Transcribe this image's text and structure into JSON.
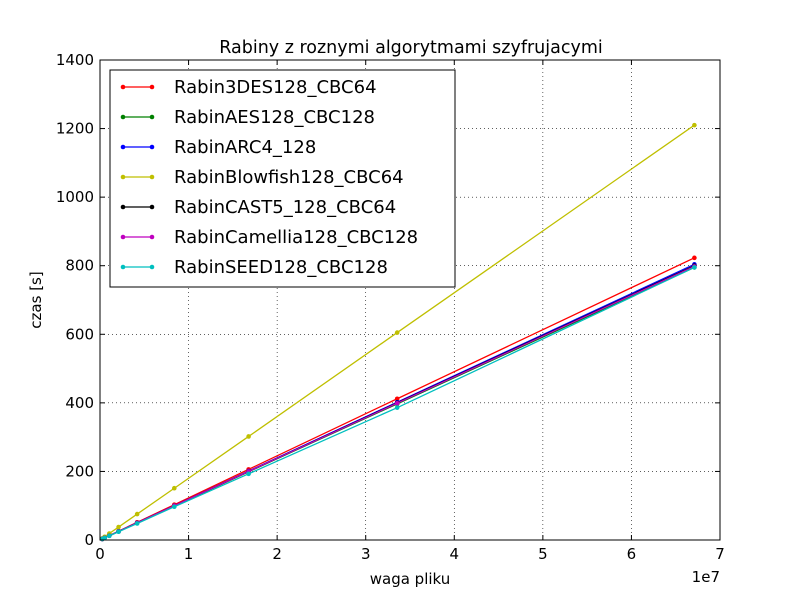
{
  "chart_data": {
    "type": "line",
    "title": "Rabiny z roznymi algorytmami szyfrujacymi",
    "xlabel": "waga pliku",
    "ylabel": "czas [s]",
    "x_offset_label": "1e7",
    "xlim": [
      0,
      70000000
    ],
    "ylim": [
      0,
      1400
    ],
    "x_ticks": [
      0,
      10000000,
      20000000,
      30000000,
      40000000,
      50000000,
      60000000,
      70000000
    ],
    "x_tick_labels": [
      "0",
      "1",
      "2",
      "3",
      "4",
      "5",
      "6",
      "7"
    ],
    "y_ticks": [
      0,
      200,
      400,
      600,
      800,
      1000,
      1200,
      1400
    ],
    "y_tick_labels": [
      "0",
      "200",
      "400",
      "600",
      "800",
      "1000",
      "1200",
      "1400"
    ],
    "grid": true,
    "legend_position": "top-left",
    "x": [
      262144,
      524288,
      1048576,
      2097152,
      4194304,
      8388608,
      16777216,
      33554432,
      67108864
    ],
    "series": [
      {
        "name": "Rabin3DES128_CBC64",
        "color": "#ff0000",
        "values": [
          3.2,
          6.4,
          12.9,
          25.8,
          51.6,
          103,
          206,
          412,
          823
        ]
      },
      {
        "name": "RabinAES128_CBC128",
        "color": "#008000",
        "values": [
          3.1,
          6.2,
          12.4,
          24.8,
          49.7,
          99,
          199,
          397,
          795
        ]
      },
      {
        "name": "RabinARC4_128",
        "color": "#0000ff",
        "values": [
          3.1,
          6.3,
          12.6,
          25.1,
          50.3,
          100,
          201,
          402,
          804
        ]
      },
      {
        "name": "RabinBlowfish128_CBC64",
        "color": "#bfbf00",
        "values": [
          4.7,
          9.5,
          18.9,
          37.8,
          75.6,
          151,
          302,
          605,
          1210
        ]
      },
      {
        "name": "RabinCAST5_128_CBC64",
        "color": "#000000",
        "values": [
          3.1,
          6.3,
          12.5,
          25.0,
          50.0,
          100,
          200,
          400,
          800
        ]
      },
      {
        "name": "RabinCamellia128_CBC128",
        "color": "#bf00bf",
        "values": [
          3.1,
          6.2,
          12.5,
          24.9,
          49.9,
          100,
          200,
          399,
          798
        ]
      },
      {
        "name": "RabinSEED128_CBC128",
        "color": "#00bfbf",
        "values": [
          3.0,
          6.0,
          12.1,
          24.1,
          48.2,
          97,
          193,
          386,
          795
        ]
      }
    ]
  }
}
